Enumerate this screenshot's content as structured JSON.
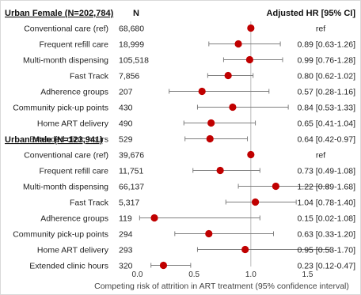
{
  "chart_data": {
    "type": "forest",
    "header": {
      "n_label": "N",
      "hr_label": "Adjusted HR [95% CI]"
    },
    "groups": [
      {
        "title": "Urban Female (N=202,784)",
        "rows": [
          {
            "label": "Conventional care (ref)",
            "n": "68,680",
            "hr": 1.0,
            "lo": null,
            "hi": null,
            "text": "ref"
          },
          {
            "label": "Frequent refill care",
            "n": "18,999",
            "hr": 0.89,
            "lo": 0.63,
            "hi": 1.26,
            "text": "0.89 [0.63-1.26]"
          },
          {
            "label": "Multi-month dispensing",
            "n": "105,518",
            "hr": 0.99,
            "lo": 0.76,
            "hi": 1.28,
            "text": "0.99 [0.76-1.28]"
          },
          {
            "label": "Fast Track",
            "n": "7,856",
            "hr": 0.8,
            "lo": 0.62,
            "hi": 1.02,
            "text": "0.80 [0.62-1.02]"
          },
          {
            "label": "Adherence groups",
            "n": "207",
            "hr": 0.57,
            "lo": 0.28,
            "hi": 1.16,
            "text": "0.57 [0.28-1.16]"
          },
          {
            "label": "Community pick-up points",
            "n": "430",
            "hr": 0.84,
            "lo": 0.53,
            "hi": 1.33,
            "text": "0.84 [0.53-1.33]"
          },
          {
            "label": "Home ART delivery",
            "n": "490",
            "hr": 0.65,
            "lo": 0.41,
            "hi": 1.04,
            "text": "0.65 [0.41-1.04]"
          },
          {
            "label": "Extended clinic hours",
            "n": "529",
            "hr": 0.64,
            "lo": 0.42,
            "hi": 0.97,
            "text": "0.64 [0.42-0.97]"
          }
        ]
      },
      {
        "title": "Urban Male (N=123,941)",
        "rows": [
          {
            "label": "Conventional care (ref)",
            "n": "39,676",
            "hr": 1.0,
            "lo": null,
            "hi": null,
            "text": "ref"
          },
          {
            "label": "Frequent refill care",
            "n": "11,751",
            "hr": 0.73,
            "lo": 0.49,
            "hi": 1.08,
            "text": "0.73 [0.49-1.08]"
          },
          {
            "label": "Multi-month dispensing",
            "n": "66,137",
            "hr": 1.22,
            "lo": 0.89,
            "hi": 1.68,
            "text": "1.22 [0.89-1.68]"
          },
          {
            "label": "Fast Track",
            "n": "5,317",
            "hr": 1.04,
            "lo": 0.78,
            "hi": 1.4,
            "text": "1.04 [0.78-1.40]"
          },
          {
            "label": "Adherence groups",
            "n": "119",
            "hr": 0.15,
            "lo": 0.02,
            "hi": 1.08,
            "text": "0.15 [0.02-1.08]"
          },
          {
            "label": "Community pick-up points",
            "n": "294",
            "hr": 0.63,
            "lo": 0.33,
            "hi": 1.2,
            "text": "0.63 [0.33-1.20]"
          },
          {
            "label": "Home ART delivery",
            "n": "293",
            "hr": 0.95,
            "lo": 0.53,
            "hi": 1.7,
            "text": "0.95 [0.53-1.70]"
          },
          {
            "label": "Extended clinic hours",
            "n": "320",
            "hr": 0.23,
            "lo": 0.12,
            "hi": 0.47,
            "text": "0.23 [0.12-0.47]"
          }
        ]
      }
    ],
    "x_axis": {
      "ticks": [
        0.0,
        0.5,
        1.0,
        1.5
      ],
      "tick_labels": [
        "0.0",
        "0.5",
        "1.0",
        "1.5"
      ],
      "xlim": [
        -0.05,
        1.8
      ],
      "reference_line": 1.0,
      "label": "Competing risk of attrition in ART treatment (95% confidence interval)"
    },
    "colors": {
      "point": "#c00000",
      "ci": "#7f7f7f",
      "reference_line": "#b8b8b8"
    }
  }
}
